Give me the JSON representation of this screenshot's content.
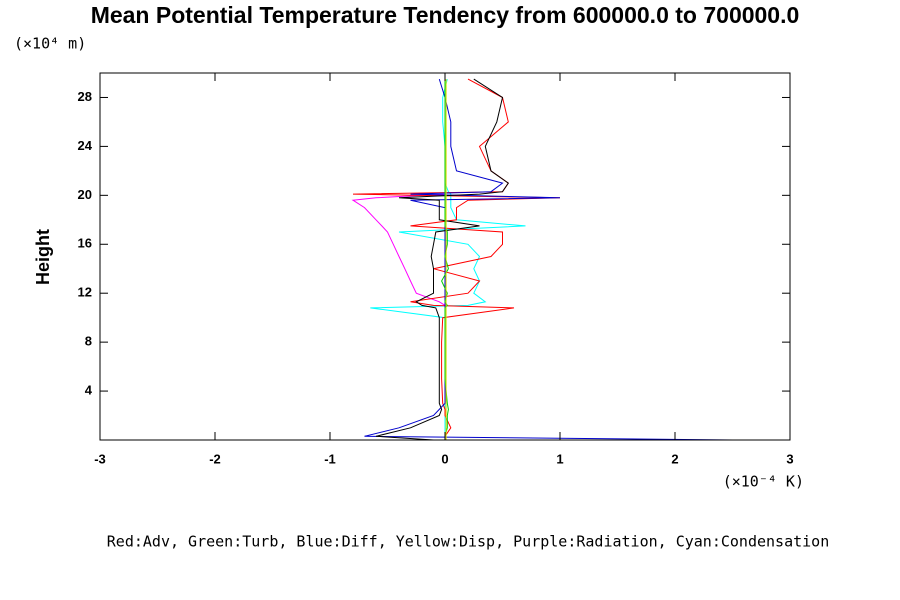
{
  "chart_data": {
    "type": "profile",
    "title": "Mean Potential Temperature Tendency from 600000.0 to 700000.0",
    "y_unit": "(×10⁴ m)",
    "ylabel": "Height",
    "x_unit": "(×10⁻⁴ K)",
    "caption": "Red:Adv, Green:Turb, Blue:Diff, Yellow:Disp, Purple:Radiation, Cyan:Condensation",
    "xlim": [
      -3,
      3
    ],
    "xticks": [
      -3,
      -2,
      -1,
      0,
      1,
      2,
      3
    ],
    "ylim": [
      0,
      30
    ],
    "yticks": [
      4,
      8,
      12,
      16,
      20,
      24,
      28
    ],
    "y": [
      0,
      0.3,
      1,
      2,
      2.5,
      3,
      5,
      8,
      10,
      10.8,
      11,
      11.3,
      12,
      13,
      14,
      15,
      16,
      17,
      17.5,
      18,
      19,
      19.6,
      19.8,
      20.1,
      20.3,
      21,
      22,
      24,
      26,
      28,
      29.5
    ],
    "series": [
      {
        "color": "#ff00ff",
        "values": [
          0,
          0,
          0,
          0,
          0,
          0,
          0,
          0,
          0,
          0,
          0,
          -0.05,
          -0.25,
          -0.3,
          -0.35,
          -0.4,
          -0.45,
          -0.5,
          -0.55,
          -0.6,
          -0.7,
          -0.8,
          -0.6,
          0,
          0,
          0,
          0,
          0,
          0,
          0,
          0
        ]
      },
      {
        "color": "#00ffff",
        "values": [
          0,
          0,
          0,
          0,
          0,
          0,
          0,
          0,
          0,
          -0.65,
          0.2,
          0.35,
          0.25,
          0.3,
          0.25,
          0.3,
          0.2,
          -0.4,
          0.7,
          0.1,
          0.05,
          0.05,
          0.05,
          0.05,
          0.03,
          0,
          0,
          0,
          -0.02,
          -0.02,
          0.02
        ]
      },
      {
        "color": "#ff0000",
        "values": [
          0,
          0,
          0.05,
          0,
          0,
          -0.02,
          -0.03,
          -0.03,
          -0.02,
          0.6,
          -0.1,
          -0.3,
          0.2,
          0.3,
          -0.1,
          0.4,
          0.5,
          0.5,
          -0.3,
          0.1,
          0.1,
          0.2,
          1.0,
          -0.8,
          0.5,
          0.55,
          0.4,
          0.3,
          0.55,
          0.5,
          0.2
        ]
      },
      {
        "color": "#0000cc",
        "values": [
          2.5,
          -0.7,
          -0.4,
          -0.1,
          -0.05,
          0,
          0,
          0,
          0,
          0,
          0,
          0,
          0,
          0,
          0,
          0,
          0,
          0,
          0,
          0,
          0,
          -0.3,
          1.0,
          -0.3,
          0.4,
          0.5,
          0.1,
          0.05,
          0.05,
          0,
          -0.05
        ]
      },
      {
        "color": "#000000",
        "values": [
          -0.1,
          -0.6,
          -0.3,
          -0.05,
          -0.03,
          -0.05,
          -0.05,
          -0.05,
          -0.05,
          -0.08,
          -0.2,
          -0.25,
          -0.1,
          -0.1,
          -0.1,
          -0.12,
          -0.1,
          -0.08,
          0.3,
          -0.05,
          -0.05,
          -0.05,
          -0.4,
          0.3,
          0.5,
          0.55,
          0.4,
          0.35,
          0.45,
          0.5,
          0.25
        ]
      },
      {
        "color": "#00cc00",
        "values": [
          0,
          0,
          0.02,
          0.02,
          0.03,
          0.02,
          0,
          0,
          0,
          0,
          0.02,
          0,
          0.02,
          -0.03,
          0.03,
          0,
          0.02,
          0.02,
          0,
          0,
          0,
          0,
          0,
          0,
          0,
          0,
          0,
          0,
          0,
          0,
          0
        ]
      },
      {
        "color": "#dddd00",
        "values": [
          0.01,
          0.01,
          0.01,
          0.01,
          0.01,
          0.01,
          0.01,
          0.01,
          0.01,
          0.01,
          0.01,
          0.01,
          0.01,
          0.01,
          0.01,
          0.01,
          0.01,
          0.01,
          0.01,
          0.01,
          0.01,
          0.01,
          0.01,
          0.01,
          0.01,
          0.01,
          0.01,
          0.01,
          0.01,
          0.01,
          0.01
        ]
      }
    ]
  }
}
